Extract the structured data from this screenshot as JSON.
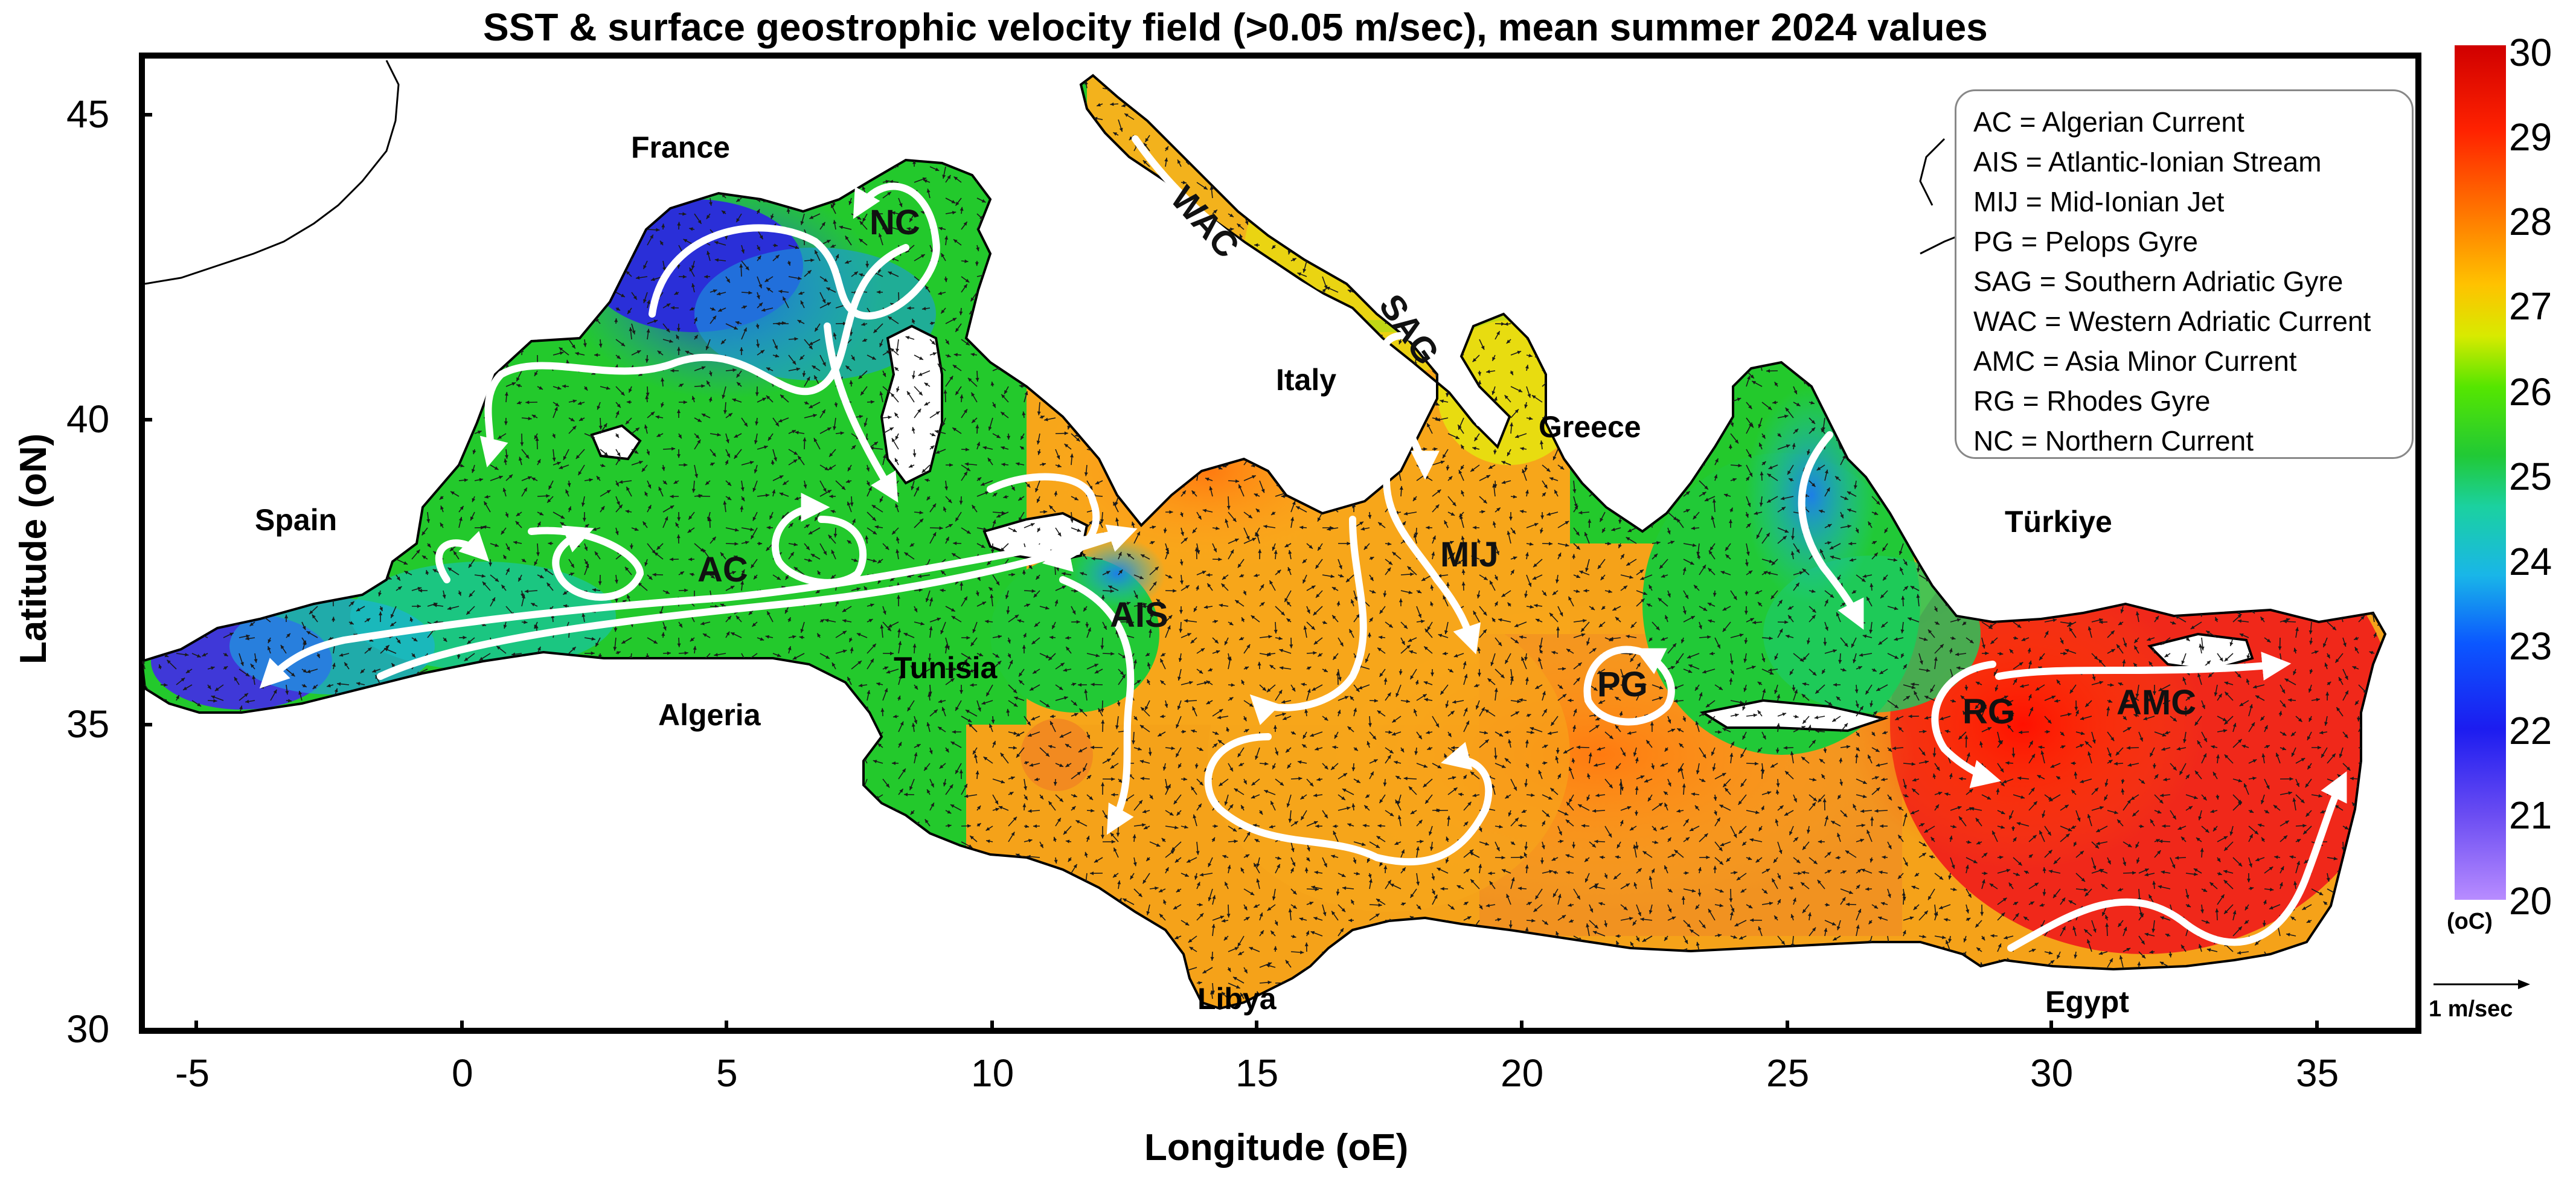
{
  "title": "SST & surface geostrophic velocity field (>0.05 m/sec), mean summer 2024 values",
  "axes": {
    "xlabel": "Longitude (ₒE)",
    "ylabel": "Latitude (ₒN)",
    "xlabel_text": "Longitude (oE)",
    "ylabel_text": "Latitude (oN)",
    "xticks": [
      "-5",
      "0",
      "5",
      "10",
      "15",
      "20",
      "25",
      "30",
      "35"
    ],
    "yticks": [
      "45",
      "40",
      "35",
      "30"
    ],
    "xlim": [
      -6,
      37.5
    ],
    "ylim": [
      30,
      46
    ]
  },
  "places": {
    "france": "France",
    "spain": "Spain",
    "italy": "Italy",
    "greece": "Greece",
    "turkiye": "Türkiye",
    "tunisia": "Tunisia",
    "algeria": "Algeria",
    "libya": "Libya",
    "egypt": "Egypt"
  },
  "features": {
    "nc": "NC",
    "wac": "WAC",
    "sag": "SAG",
    "ac": "AC",
    "ais": "AIS",
    "mij": "MIJ",
    "pg": "PG",
    "rg": "RG",
    "amc": "AMC"
  },
  "legend": [
    "AC = Algerian Current",
    "AIS = Atlantic-Ionian Stream",
    "MIJ = Mid-Ionian Jet",
    "PG = Pelops Gyre",
    "SAG = Southern Adriatic Gyre",
    "WAC = Western Adriatic Current",
    "AMC = Asia Minor Current",
    "RG = Rhodes Gyre",
    "NC = Northern Current"
  ],
  "colorbar": {
    "ticks": [
      "30",
      "29",
      "28",
      "27",
      "26",
      "25",
      "24",
      "23",
      "22",
      "21",
      "20"
    ],
    "unit": "(ₒC)",
    "unit_text": "(oC)",
    "range": [
      20,
      30
    ],
    "colors": [
      "#b88cff",
      "#3a2fd6",
      "#0033ff",
      "#1e90ff",
      "#16c8d6",
      "#22c93a",
      "#33e600",
      "#d9e600",
      "#ffb000",
      "#ff6a00",
      "#ff1a00",
      "#e00000"
    ]
  },
  "velocity_scale": {
    "label": "1 m/sec"
  },
  "colors": {
    "cold": "#2a30d8",
    "cool": "#20c7c7",
    "mid": "#33d42a",
    "warm": "#f7a11a",
    "hot": "#f1281b",
    "arrows": "#ffffff"
  }
}
